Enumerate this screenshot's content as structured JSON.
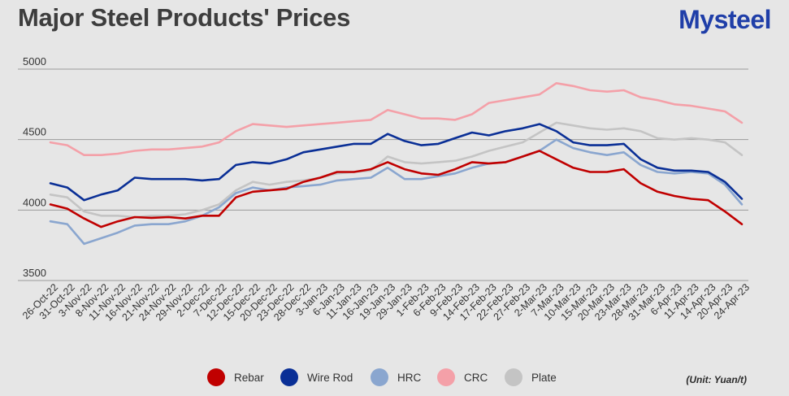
{
  "header": {
    "title": "Major Steel Products' Prices",
    "logo_text": "Mysteel"
  },
  "unit_label": "(Unit: Yuan/t)",
  "chart_data": {
    "type": "line",
    "title": "Major Steel Products' Prices",
    "ylim": [
      3500,
      5000
    ],
    "yticks": [
      3500,
      4000,
      4500,
      5000
    ],
    "grid": true,
    "legend": "bottom",
    "x_ticks": [
      "26-Oct-22",
      "31-Oct-22",
      "3-Nov-22",
      "8-Nov-22",
      "11-Nov-22",
      "16-Nov-22",
      "21-Nov-22",
      "24-Nov-22",
      "29-Nov-22",
      "2-Dec-22",
      "7-Dec-22",
      "12-Dec-22",
      "15-Dec-22",
      "20-Dec-22",
      "23-Dec-22",
      "28-Dec-22",
      "3-Jan-23",
      "6-Jan-23",
      "11-Jan-23",
      "16-Jan-23",
      "19-Jan-23",
      "29-Jan-23",
      "1-Feb-23",
      "6-Feb-23",
      "9-Feb-23",
      "14-Feb-23",
      "17-Feb-23",
      "22-Feb-23",
      "27-Feb-23",
      "2-Mar-23",
      "7-Mar-23",
      "10-Mar-23",
      "15-Mar-23",
      "20-Mar-23",
      "23-Mar-23",
      "28-Mar-23",
      "31-Mar-23",
      "6-Apr-23",
      "11-Apr-23",
      "14-Apr-23",
      "20-Apr-23",
      "24-Apr-23"
    ],
    "series": [
      {
        "name": "Rebar",
        "color": "#c00000",
        "values": [
          4040,
          4010,
          3940,
          3880,
          3920,
          3950,
          3945,
          3950,
          3940,
          3960,
          3960,
          4090,
          4130,
          4140,
          4150,
          4200,
          4230,
          4270,
          4270,
          4290,
          4340,
          4290,
          4260,
          4250,
          4290,
          4340,
          4330,
          4340,
          4380,
          4420,
          4360,
          4300,
          4270,
          4270,
          4290,
          4190,
          4130,
          4100,
          4080,
          4070,
          3990,
          3900
        ]
      },
      {
        "name": "Wire Rod",
        "color": "#0a2f96",
        "values": [
          4190,
          4160,
          4070,
          4110,
          4140,
          4230,
          4220,
          4220,
          4220,
          4210,
          4220,
          4320,
          4340,
          4330,
          4360,
          4410,
          4430,
          4450,
          4470,
          4470,
          4540,
          4490,
          4460,
          4470,
          4510,
          4550,
          4530,
          4560,
          4580,
          4610,
          4560,
          4480,
          4460,
          4460,
          4470,
          4360,
          4300,
          4280,
          4280,
          4270,
          4200,
          4080
        ]
      },
      {
        "name": "HRC",
        "color": "#8aa6cf",
        "values": [
          3920,
          3900,
          3760,
          3800,
          3840,
          3890,
          3900,
          3900,
          3920,
          3960,
          4020,
          4120,
          4160,
          4140,
          4160,
          4170,
          4180,
          4210,
          4220,
          4230,
          4300,
          4220,
          4220,
          4240,
          4260,
          4300,
          4330,
          4340,
          4380,
          4420,
          4500,
          4440,
          4410,
          4390,
          4410,
          4320,
          4270,
          4260,
          4270,
          4260,
          4180,
          4040
        ]
      },
      {
        "name": "CRC",
        "color": "#f4a0a8",
        "values": [
          4480,
          4460,
          4390,
          4390,
          4400,
          4420,
          4430,
          4430,
          4440,
          4450,
          4480,
          4560,
          4610,
          4600,
          4590,
          4600,
          4610,
          4620,
          4630,
          4640,
          4710,
          4680,
          4650,
          4650,
          4640,
          4680,
          4760,
          4780,
          4800,
          4820,
          4900,
          4880,
          4850,
          4840,
          4850,
          4800,
          4780,
          4750,
          4740,
          4720,
          4700,
          4620
        ]
      },
      {
        "name": "Plate",
        "color": "#c4c4c4",
        "values": [
          4110,
          4090,
          3990,
          3960,
          3960,
          3950,
          3960,
          3960,
          3970,
          4000,
          4040,
          4140,
          4200,
          4180,
          4200,
          4210,
          4230,
          4260,
          4270,
          4280,
          4380,
          4340,
          4330,
          4340,
          4350,
          4380,
          4420,
          4450,
          4480,
          4550,
          4620,
          4600,
          4580,
          4570,
          4580,
          4560,
          4510,
          4500,
          4510,
          4500,
          4480,
          4390
        ]
      }
    ]
  }
}
